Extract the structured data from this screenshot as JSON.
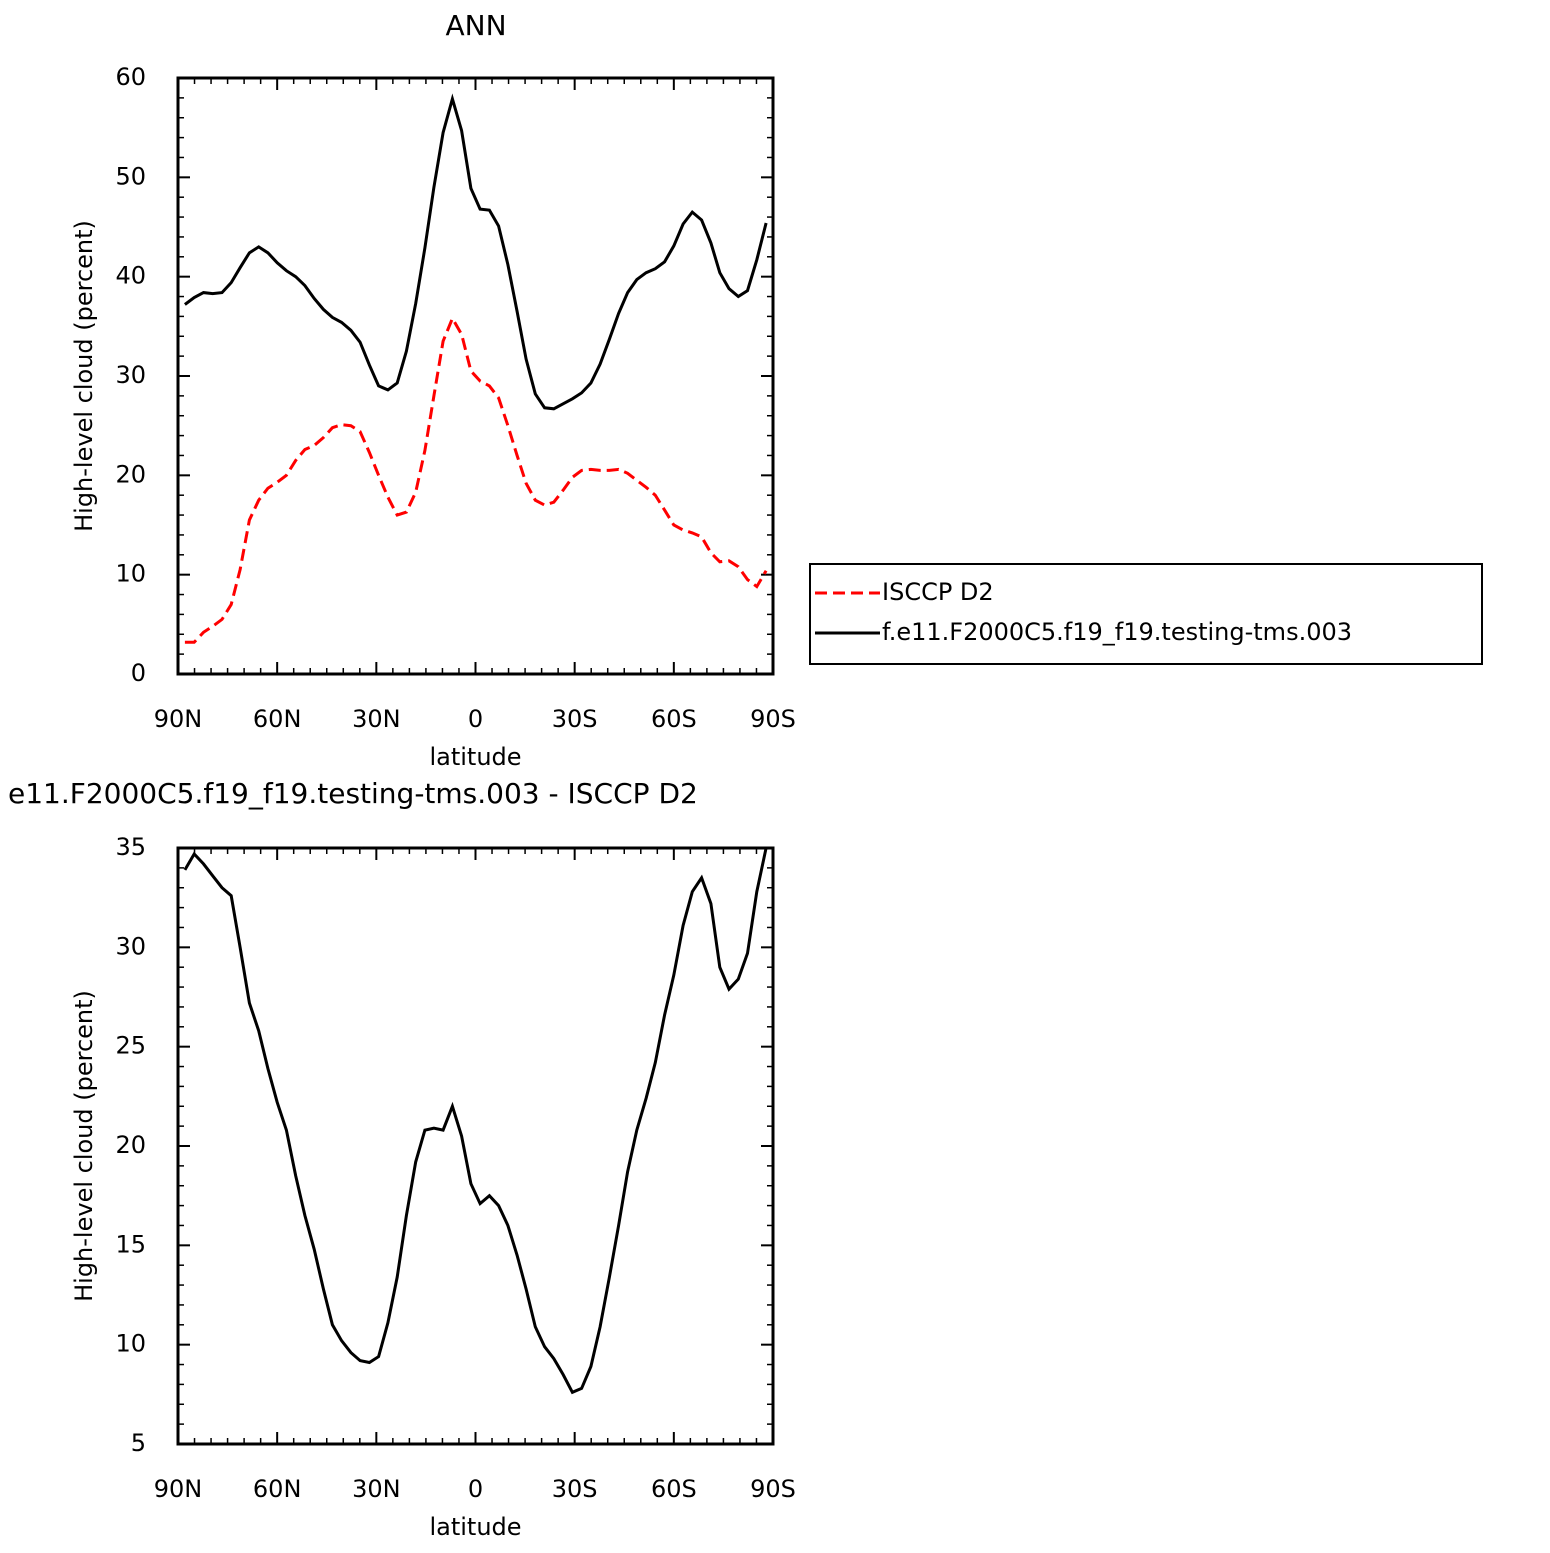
{
  "chart_data": [
    {
      "type": "line",
      "title": "ANN",
      "xlabel": "latitude",
      "ylabel": "High-level cloud (percent)",
      "xlim": [
        90,
        -90
      ],
      "xticks": [
        {
          "value": 90,
          "label": "90N"
        },
        {
          "value": 60,
          "label": "60N"
        },
        {
          "value": 30,
          "label": "30N"
        },
        0,
        {
          "value": -30,
          "label": "30S"
        },
        {
          "value": -60,
          "label": "60S"
        },
        {
          "value": -90,
          "label": "90S"
        }
      ],
      "ylim": [
        0,
        60
      ],
      "yticks": [
        0,
        10,
        20,
        30,
        40,
        50,
        60
      ],
      "x": [
        87.9,
        85.1,
        82.3,
        79.5,
        76.7,
        73.9,
        71.2,
        68.4,
        65.6,
        62.8,
        60.0,
        57.2,
        54.4,
        51.6,
        48.8,
        46.0,
        43.3,
        40.5,
        37.7,
        34.9,
        32.1,
        29.3,
        26.5,
        23.7,
        20.9,
        18.1,
        15.3,
        12.6,
        9.8,
        7.0,
        4.2,
        1.4,
        -1.4,
        -4.2,
        -7.0,
        -9.8,
        -12.6,
        -15.3,
        -18.1,
        -20.9,
        -23.7,
        -26.5,
        -29.3,
        -32.1,
        -34.9,
        -37.7,
        -40.5,
        -43.3,
        -46.0,
        -48.8,
        -51.6,
        -54.4,
        -57.2,
        -60.0,
        -62.8,
        -65.6,
        -68.4,
        -71.2,
        -73.9,
        -76.7,
        -79.5,
        -82.3,
        -85.1,
        -87.9
      ],
      "series": [
        {
          "name": "ISCCP D2",
          "color": "#ff0000",
          "line_style": "dashed",
          "values": [
            3.2,
            3.2,
            4.2,
            4.8,
            5.5,
            7.0,
            10.5,
            15.5,
            17.5,
            18.7,
            19.3,
            20.0,
            21.5,
            22.6,
            23.0,
            23.8,
            24.8,
            25.1,
            25.0,
            24.4,
            22.3,
            20.0,
            17.8,
            16.0,
            16.3,
            18.3,
            22.5,
            28.0,
            33.5,
            35.8,
            34.2,
            30.5,
            29.5,
            29.0,
            27.8,
            25.0,
            22.0,
            19.2,
            17.5,
            17.0,
            17.3,
            18.5,
            19.8,
            20.5,
            20.6,
            20.5,
            20.5,
            20.6,
            20.2,
            19.5,
            18.8,
            18.0,
            16.5,
            15.0,
            14.5,
            14.2,
            13.8,
            12.2,
            11.3,
            11.4,
            10.8,
            9.5,
            8.8,
            10.4
          ]
        },
        {
          "name": "f.e11.F2000C5.f19_f19.testing-tms.003",
          "color": "#000000",
          "line_style": "solid",
          "values": [
            37.2,
            37.9,
            38.4,
            38.3,
            38.4,
            39.4,
            40.9,
            42.4,
            43.0,
            42.4,
            41.4,
            40.6,
            40.0,
            39.1,
            37.8,
            36.7,
            35.9,
            35.4,
            34.6,
            33.4,
            31.1,
            29.0,
            28.6,
            29.3,
            32.5,
            37.3,
            42.9,
            49.0,
            54.5,
            57.9,
            54.7,
            48.9,
            46.8,
            46.7,
            45.1,
            41.2,
            36.5,
            31.7,
            28.2,
            26.8,
            26.7,
            27.2,
            27.7,
            28.3,
            29.3,
            31.2,
            33.7,
            36.3,
            38.4,
            39.7,
            40.4,
            40.8,
            41.5,
            43.1,
            45.3,
            46.5,
            45.7,
            43.4,
            40.4,
            38.8,
            38.0,
            38.6,
            41.7,
            45.4
          ]
        }
      ]
    },
    {
      "type": "line",
      "title": "e11.F2000C5.f19_f19.testing-tms.003 - ISCCP D2",
      "xlabel": "latitude",
      "ylabel": "High-level cloud (percent)",
      "xlim": [
        90,
        -90
      ],
      "xticks": [
        {
          "value": 90,
          "label": "90N"
        },
        {
          "value": 60,
          "label": "60N"
        },
        {
          "value": 30,
          "label": "30N"
        },
        0,
        {
          "value": -30,
          "label": "30S"
        },
        {
          "value": -60,
          "label": "60S"
        },
        {
          "value": -90,
          "label": "90S"
        }
      ],
      "ylim": [
        5,
        35
      ],
      "yticks": [
        5,
        10,
        15,
        20,
        25,
        30,
        35
      ],
      "x": [
        87.9,
        85.1,
        82.3,
        79.5,
        76.7,
        73.9,
        71.2,
        68.4,
        65.6,
        62.8,
        60.0,
        57.2,
        54.4,
        51.6,
        48.8,
        46.0,
        43.3,
        40.5,
        37.7,
        34.9,
        32.1,
        29.3,
        26.5,
        23.7,
        20.9,
        18.1,
        15.3,
        12.6,
        9.8,
        7.0,
        4.2,
        1.4,
        -1.4,
        -4.2,
        -7.0,
        -9.8,
        -12.6,
        -15.3,
        -18.1,
        -20.9,
        -23.7,
        -26.5,
        -29.3,
        -32.1,
        -34.9,
        -37.7,
        -40.5,
        -43.3,
        -46.0,
        -48.8,
        -51.6,
        -54.4,
        -57.2,
        -60.0,
        -62.8,
        -65.6,
        -68.4,
        -71.2,
        -73.9,
        -76.7,
        -79.5,
        -82.3,
        -85.1,
        -87.9
      ],
      "series": [
        {
          "color": "#000000",
          "line_style": "solid",
          "values": [
            33.9,
            34.7,
            34.2,
            33.6,
            33.0,
            32.6,
            30.0,
            27.2,
            25.8,
            23.9,
            22.2,
            20.8,
            18.5,
            16.5,
            14.8,
            12.8,
            11.0,
            10.2,
            9.6,
            9.2,
            9.1,
            9.4,
            11.1,
            13.4,
            16.5,
            19.2,
            20.8,
            20.9,
            20.8,
            22.0,
            20.5,
            18.1,
            17.1,
            17.5,
            17.0,
            16.0,
            14.5,
            12.8,
            10.9,
            9.9,
            9.3,
            8.5,
            7.6,
            7.8,
            8.9,
            10.9,
            13.4,
            16.0,
            18.7,
            20.8,
            22.4,
            24.2,
            26.6,
            28.6,
            31.1,
            32.8,
            33.5,
            32.2,
            29.0,
            27.9,
            28.4,
            29.7,
            32.8,
            35.0
          ]
        }
      ]
    }
  ]
}
